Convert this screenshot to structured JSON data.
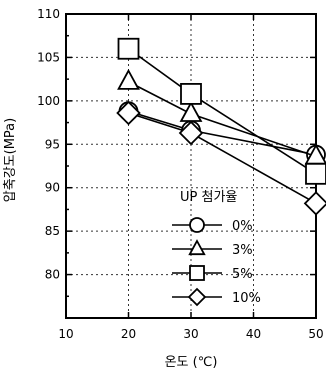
{
  "chart_data": {
    "type": "line",
    "xlabel": "온도 (℃)",
    "ylabel": "압축강도(MPa)",
    "xlim": [
      10,
      50
    ],
    "ylim": [
      75,
      110
    ],
    "xticks": [
      10,
      20,
      30,
      40,
      50
    ],
    "yticks": [
      80,
      85,
      90,
      95,
      100,
      105,
      110
    ],
    "x": [
      20,
      30,
      50
    ],
    "grid": true,
    "legend_title": "UP 첨가율",
    "legend_position": "center-right",
    "series": [
      {
        "name": "0%",
        "marker": "circle",
        "values": [
          98.8,
          96.6,
          93.8
        ]
      },
      {
        "name": "3%",
        "marker": "triangle",
        "values": [
          102.2,
          98.5,
          93.6
        ]
      },
      {
        "name": "5%",
        "marker": "square",
        "values": [
          106.0,
          100.8,
          91.6
        ]
      },
      {
        "name": "10%",
        "marker": "diamond",
        "values": [
          98.6,
          96.3,
          88.2
        ]
      }
    ]
  }
}
